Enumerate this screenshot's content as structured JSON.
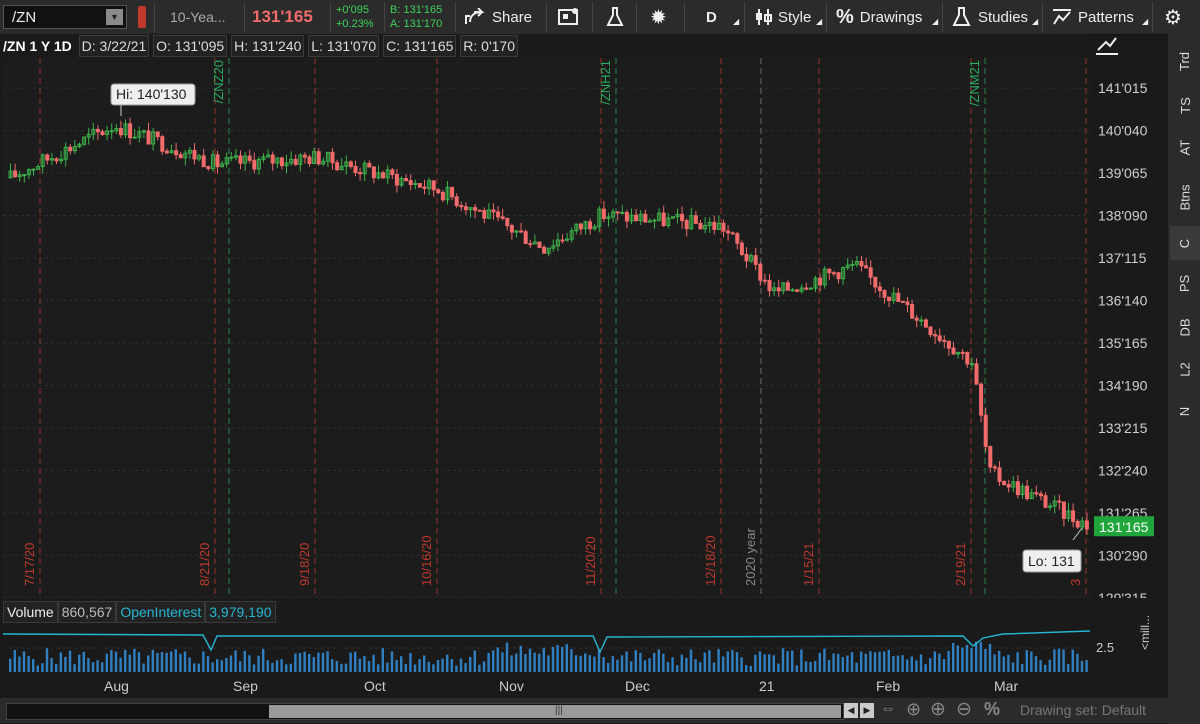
{
  "toolbar": {
    "symbol": "/ZN",
    "instrument": "10-Yea...",
    "last": "131'165",
    "net_change": "+0'095",
    "pct_change": "+0.23%",
    "bid": "B: 131'165",
    "ask": "A: 131'170",
    "share_label": "Share",
    "aggregation_label": "D",
    "style_label": "Style",
    "drawings_label": "Drawings",
    "studies_label": "Studies",
    "patterns_label": "Patterns"
  },
  "header": {
    "title": "/ZN 1 Y 1D",
    "date": "D: 3/22/21",
    "open": "O: 131'095",
    "high": "H: 131'240",
    "low": "L: 131'070",
    "close": "C: 131'165",
    "range": "R: 0'170"
  },
  "price_axis": [
    "141'015",
    "140'040",
    "139'065",
    "138'090",
    "137'115",
    "136'140",
    "135'165",
    "134'190",
    "133'215",
    "132'240",
    "131'265",
    "130'290",
    "129'315"
  ],
  "price_axis_range": [
    129.98,
    141.7
  ],
  "current_price_tag": "131'165",
  "hi_label": "Hi: 140'130",
  "lo_label": "Lo: 131",
  "vertical_markers": [
    {
      "label": "7/17/20",
      "color": "#c0392b"
    },
    {
      "label": "8/21/20",
      "color": "#c0392b"
    },
    {
      "label": "/ZNZ20",
      "color": "#27ae60"
    },
    {
      "label": "9/18/20",
      "color": "#c0392b"
    },
    {
      "label": "10/16/20",
      "color": "#c0392b"
    },
    {
      "label": "11/20/20",
      "color": "#c0392b"
    },
    {
      "label": "/ZNH21",
      "color": "#27ae60"
    },
    {
      "label": "12/18/20",
      "color": "#c0392b"
    },
    {
      "label": "2020 year",
      "color": "#888888"
    },
    {
      "label": "1/15/21",
      "color": "#c0392b"
    },
    {
      "label": "2/19/21",
      "color": "#c0392b"
    },
    {
      "label": "/ZNM21",
      "color": "#27ae60"
    },
    {
      "label": "3",
      "color": "#c0392b"
    }
  ],
  "volume_header": {
    "volume_label": "Volume",
    "volume_value": "860,567",
    "oi_label": "OpenInterest",
    "oi_value": "3,979,190"
  },
  "volume_axis": {
    "tick": "2.5",
    "unit": "<mill..."
  },
  "x_axis": [
    "Aug",
    "Sep",
    "Oct",
    "Nov",
    "Dec",
    "21",
    "Feb",
    "Mar"
  ],
  "side_buttons": [
    "Trd",
    "TS",
    "AT",
    "Btns",
    "C",
    "PS",
    "DB",
    "L2",
    "N"
  ],
  "bottom": {
    "drawing_set": "Drawing set: Default"
  },
  "colors": {
    "up": "#3cb34a",
    "down": "#f26b6b",
    "price_tag": "#1fa53a",
    "volume": "#2f7fc1",
    "oi_line": "#25b7d3"
  },
  "chart_data": {
    "type": "candlestick",
    "title": "/ZN 1 Y 1D",
    "y_unit": "price (32nds)",
    "approx_close_path": [
      {
        "x": "7/17/20",
        "y": 139.1
      },
      {
        "x": "8/05/20",
        "y": 140.25
      },
      {
        "x": "8/21/20",
        "y": 139.4
      },
      {
        "x": "9/18/20",
        "y": 139.55
      },
      {
        "x": "10/16/20",
        "y": 138.85
      },
      {
        "x": "11/10/20",
        "y": 137.6
      },
      {
        "x": "11/20/20",
        "y": 138.3
      },
      {
        "x": "12/18/20",
        "y": 138.05
      },
      {
        "x": "1/08/21",
        "y": 136.6
      },
      {
        "x": "1/22/21",
        "y": 137.2
      },
      {
        "x": "2/19/21",
        "y": 135.1
      },
      {
        "x": "2/26/21",
        "y": 132.7
      },
      {
        "x": "3/22/21",
        "y": 131.52
      }
    ]
  }
}
